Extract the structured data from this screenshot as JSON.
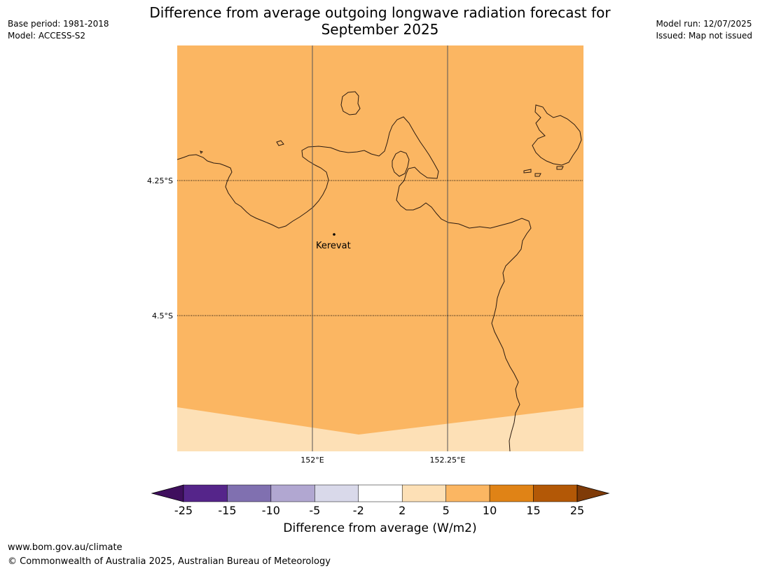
{
  "title_line1": "Difference from average outgoing longwave radiation forecast for",
  "title_line2": "September 2025",
  "meta_left": {
    "base_period": "Base period: 1981-2018",
    "model": "Model: ACCESS-S2"
  },
  "meta_right": {
    "model_run": "Model run: 12/07/2025",
    "issued": "Issued: Map not issued"
  },
  "lat_labels": [
    "4.25°S",
    "4.5°S"
  ],
  "lon_labels": [
    "152°E",
    "152.25°E"
  ],
  "place": {
    "name": "Kerevat"
  },
  "colorbar": {
    "title": "Difference from average (W/m2)",
    "ticks": [
      "-25",
      "-15",
      "-10",
      "-5",
      "-2",
      "2",
      "5",
      "10",
      "15",
      "25"
    ],
    "colors": [
      "#3f0f5e",
      "#55258a",
      "#8070b0",
      "#b1a7d1",
      "#d9d9ea",
      "#ffffff",
      "#fde0b6",
      "#fbb662",
      "#e08316",
      "#b35806",
      "#7f3b08"
    ]
  },
  "map_colors": {
    "dominant": "#fbb662",
    "light": "#fde0b6"
  },
  "footer": {
    "url": "www.bom.gov.au/climate",
    "copyright": "© Commonwealth of Australia 2025, Australian Bureau of Meteorology"
  }
}
